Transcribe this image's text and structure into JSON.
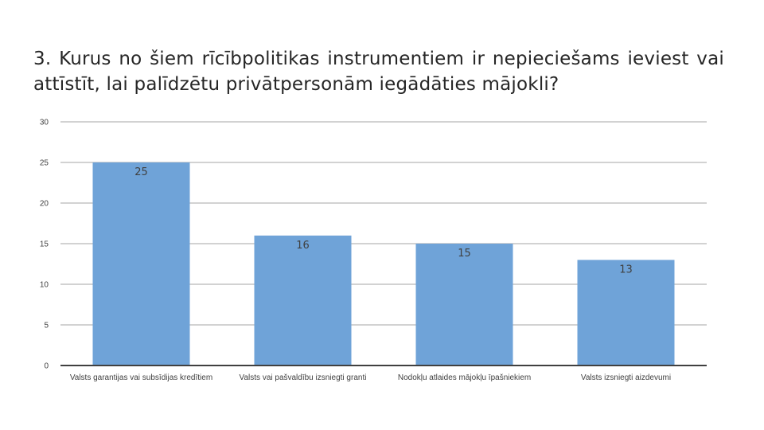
{
  "slide": {
    "title": "3. Kurus no šiem rīcībpolitikas instrumentiem ir nepieciešams ieviest vai attīstīt, lai palīdzētu privātpersonām iegādāties mājokli?"
  },
  "chart_data": {
    "type": "bar",
    "title": "",
    "xlabel": "",
    "ylabel": "",
    "categories": [
      "Valsts garantijas vai subsīdijas kredītiem",
      "Valsts vai pašvaldību izsniegti granti",
      "Nodokļu atlaides mājokļu īpašniekiem",
      "Valsts izsniegti aizdevumi"
    ],
    "values": [
      25,
      16,
      15,
      13
    ],
    "ylim": [
      0,
      30
    ],
    "yticks": [
      0,
      5,
      10,
      15,
      20,
      25,
      30
    ],
    "grid": true,
    "legend": "none",
    "bar_color": "#6FA3D8",
    "grid_color": "#a6a6a6",
    "axis_color": "#404040",
    "label_color": "#404040"
  }
}
